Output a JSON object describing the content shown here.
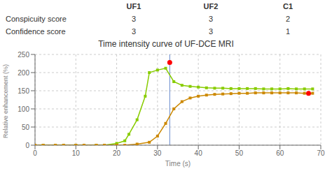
{
  "chart_data": [
    {
      "type": "table",
      "columns": [
        "UF1",
        "UF2",
        "C1"
      ],
      "rows": [
        {
          "name": "Conspicuity score",
          "values": [
            3,
            3,
            2
          ]
        },
        {
          "name": "Confidence score",
          "values": [
            3,
            3,
            1
          ]
        }
      ]
    },
    {
      "type": "line",
      "title": "Time intensity curve of UF-DCE MRI",
      "xlabel": "Time (s)",
      "ylabel": "Relative enhancement (%)",
      "xlim": [
        0,
        70
      ],
      "ylim": [
        0,
        250
      ],
      "xticks": [
        0,
        10,
        20,
        30,
        40,
        50,
        60,
        70
      ],
      "yticks": [
        0,
        50,
        100,
        150,
        200,
        250
      ],
      "grid": true,
      "series": [
        {
          "type": "line",
          "color": "#88cc00",
          "marker": "square",
          "x": [
            0,
            2,
            5,
            7,
            10,
            12,
            15,
            17,
            20,
            22,
            23,
            25,
            27,
            28,
            30,
            32,
            34,
            36,
            38,
            40,
            42,
            44,
            46,
            48,
            50,
            52,
            54,
            56,
            58,
            60,
            62,
            64,
            66,
            68
          ],
          "values": [
            0,
            0,
            0,
            0,
            0,
            0,
            0,
            0,
            5,
            12,
            30,
            70,
            135,
            200,
            207,
            212,
            175,
            165,
            162,
            160,
            158,
            157,
            157,
            156,
            156,
            156,
            156,
            155,
            155,
            155,
            156,
            155,
            155,
            155
          ]
        },
        {
          "type": "line",
          "color": "#cc8800",
          "marker": "square",
          "x": [
            0,
            2,
            5,
            7,
            10,
            12,
            15,
            17,
            20,
            22,
            25,
            28,
            30,
            32,
            34,
            36,
            38,
            40,
            42,
            44,
            46,
            48,
            50,
            52,
            54,
            56,
            58,
            60,
            62,
            64,
            66,
            68
          ],
          "values": [
            0,
            0,
            0,
            0,
            0,
            0,
            0,
            0,
            0,
            0,
            3,
            8,
            25,
            60,
            100,
            120,
            130,
            135,
            138,
            140,
            141,
            142,
            143,
            143,
            144,
            144,
            144,
            144,
            144,
            144,
            143,
            143
          ]
        },
        {
          "type": "scatter",
          "color": "red",
          "marker": "circle",
          "x": [
            33,
            67
          ],
          "values": [
            228,
            143
          ]
        }
      ],
      "annotations": [
        {
          "type": "vline",
          "x": 33,
          "color": "#6688cc"
        }
      ]
    }
  ]
}
